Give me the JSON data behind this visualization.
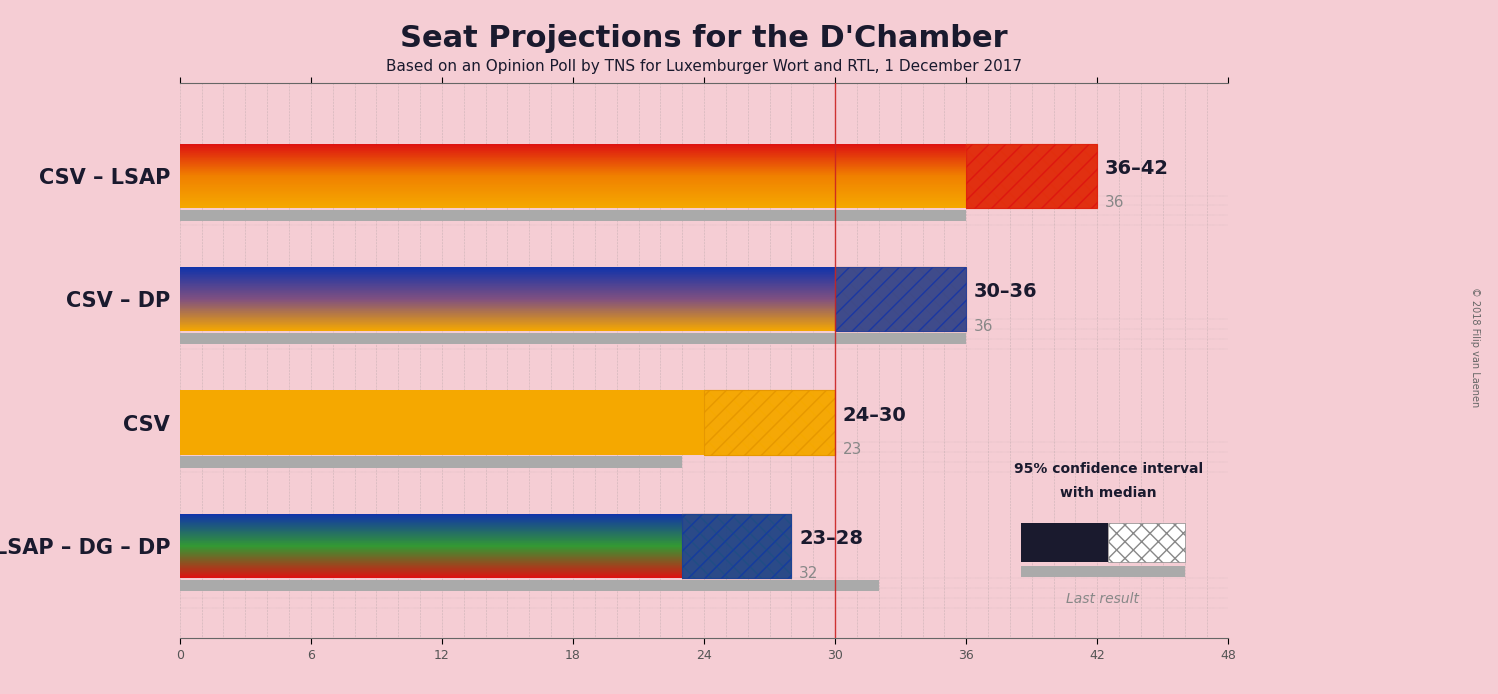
{
  "title": "Seat Projections for the D'Chamber",
  "subtitle": "Based on an Opinion Poll by TNS for Luxemburger Wort and RTL, 1 December 2017",
  "background_color": "#f5cdd4",
  "coalitions": [
    "CSV – LSAP",
    "CSV – DP",
    "CSV",
    "LSAP – DG – DP"
  ],
  "median_low": [
    36,
    30,
    24,
    23
  ],
  "median_high": [
    42,
    36,
    30,
    28
  ],
  "last_result": [
    36,
    36,
    23,
    32
  ],
  "axis_max": 48,
  "axis_ticks": [
    0,
    6,
    12,
    18,
    24,
    30,
    36,
    42,
    48
  ],
  "majority_line": 30,
  "colors": {
    "orange": "#f5a800",
    "red": "#dd1111",
    "blue": "#1133aa",
    "green": "#339933"
  },
  "label_ranges": [
    "36–42",
    "30–36",
    "24–30",
    "23–28"
  ],
  "copyright": "© 2018 Filip van Laenen",
  "bar_gradients": [
    [
      "#f5a800",
      "#f08000",
      "#dd1111"
    ],
    [
      "#f5a800",
      "#805080",
      "#1133aa"
    ],
    [
      "#f5a800"
    ],
    [
      "#dd1111",
      "#339933",
      "#1133aa"
    ]
  ]
}
